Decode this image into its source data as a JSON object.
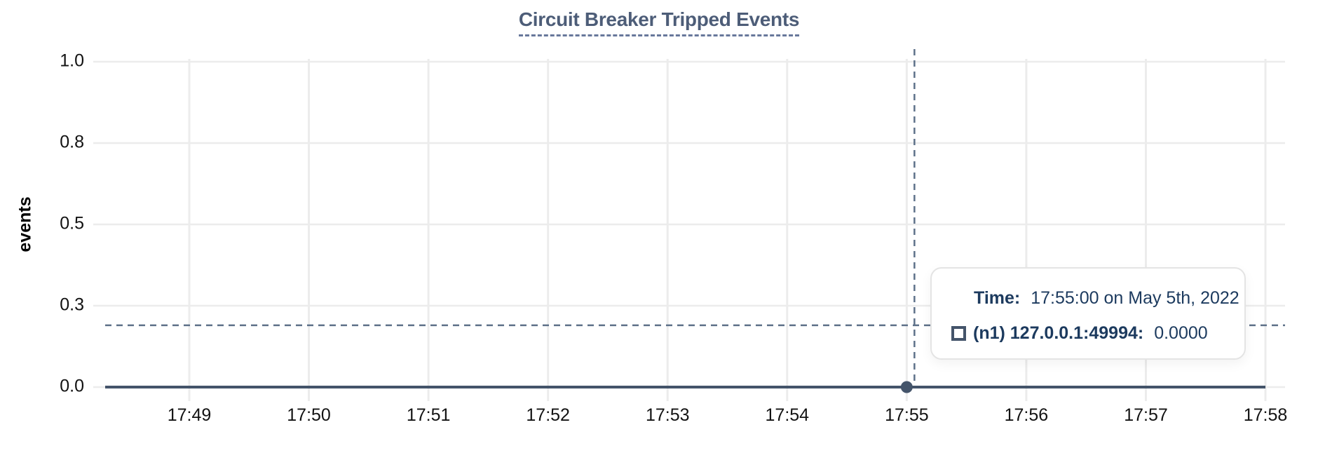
{
  "title": "Circuit Breaker Tripped Events",
  "y_axis": {
    "label": "events",
    "tick_labels": [
      "0.0",
      "0.3",
      "0.5",
      "0.8",
      "1.0"
    ]
  },
  "x_axis": {
    "tick_labels": [
      "17:49",
      "17:50",
      "17:51",
      "17:52",
      "17:53",
      "17:54",
      "17:55",
      "17:56",
      "17:57",
      "17:58"
    ]
  },
  "tooltip": {
    "time_label": "Time:",
    "time_value": "17:55:00 on May 5th, 2022",
    "series_swatch": "square-outline-icon",
    "series_name": "(n1) 127.0.0.1:49994:",
    "series_value": "0.0000"
  },
  "chart_data": {
    "type": "line",
    "title": "Circuit Breaker Tripped Events",
    "xlabel": "",
    "ylabel": "events",
    "x": [
      "17:49",
      "17:50",
      "17:51",
      "17:52",
      "17:53",
      "17:54",
      "17:55",
      "17:56",
      "17:57",
      "17:58"
    ],
    "series": [
      {
        "name": "(n1) 127.0.0.1:49994",
        "values": [
          0,
          0,
          0,
          0,
          0,
          0,
          0,
          0,
          0,
          0
        ]
      }
    ],
    "ylim": [
      0,
      1
    ],
    "y_tick_values": [
      0,
      0.25,
      0.5,
      0.75,
      1.0
    ],
    "y_tick_labels": [
      "0.0",
      "0.3",
      "0.5",
      "0.8",
      "1.0"
    ],
    "grid": true,
    "legend_position": "tooltip",
    "cursor": {
      "hover_x": "17:55",
      "hover_value": 0.0,
      "crosshair_y_fraction": 0.19
    }
  },
  "colors": {
    "title": "#4d5d78",
    "series": "#44546a",
    "crosshair": "#5e7189",
    "grid": "#ececec",
    "tooltip_text": "#1c3a5e",
    "tick_text": "#121212"
  }
}
